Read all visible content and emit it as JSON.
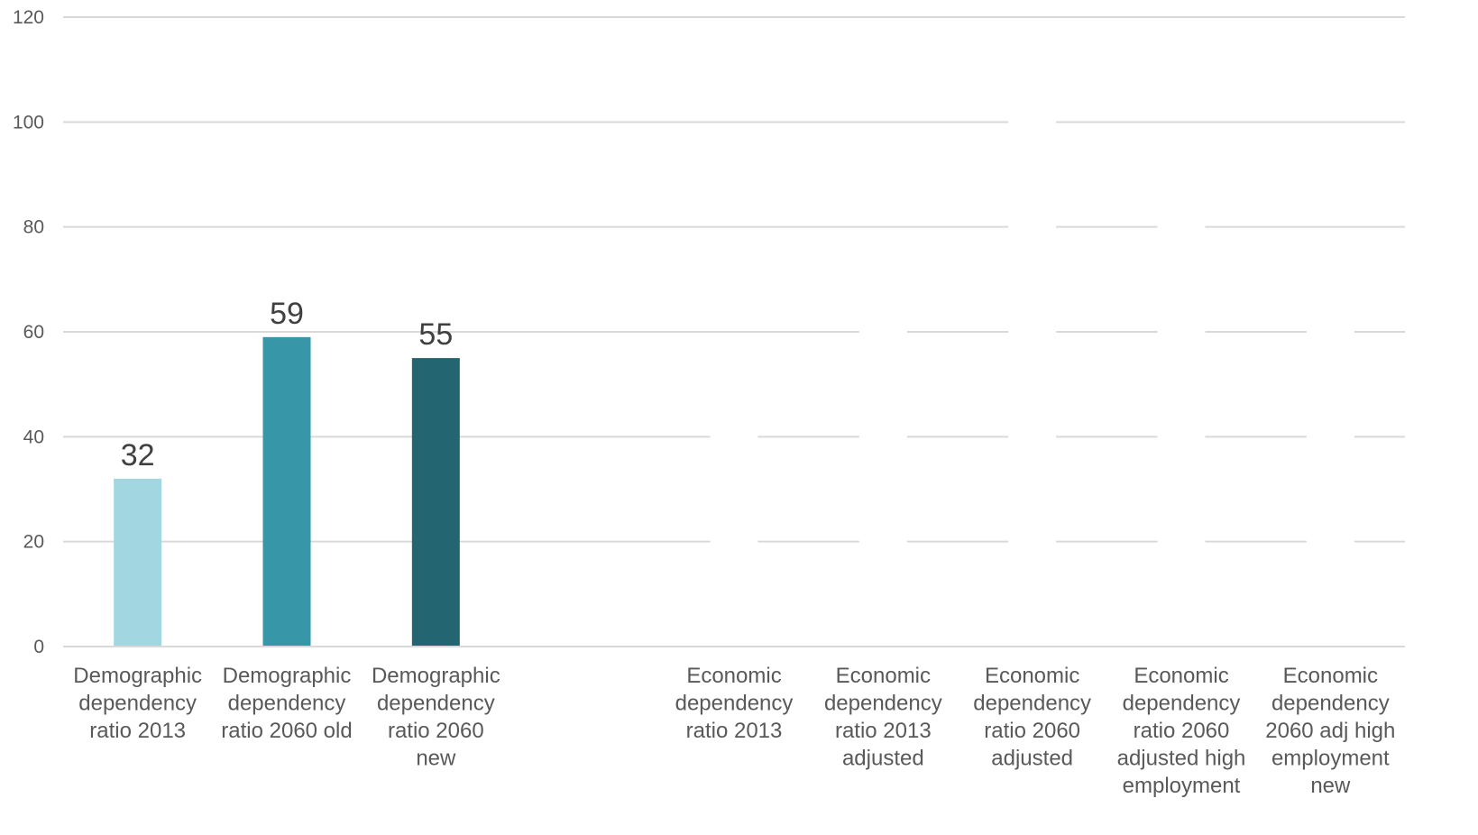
{
  "chart_data": {
    "type": "bar",
    "categories": [
      [
        "Demographic",
        "dependency",
        "ratio 2013"
      ],
      [
        "Demographic",
        "dependency",
        "ratio 2060 old"
      ],
      [
        "Demographic",
        "dependency",
        "ratio 2060",
        "new"
      ],
      [],
      [
        "Economic",
        "dependency",
        "ratio 2013"
      ],
      [
        "Economic",
        "dependency",
        "ratio 2013",
        "adjusted"
      ],
      [
        "Economic",
        "dependency",
        "ratio 2060",
        "adjusted"
      ],
      [
        "Economic",
        "dependency",
        "ratio 2060",
        "adjusted high",
        "employment"
      ],
      [
        "Economic",
        "dependency",
        "2060 adj high",
        "employment",
        "new"
      ]
    ],
    "values": [
      32,
      59,
      55,
      null,
      null,
      null,
      null,
      null,
      null
    ],
    "data_labels": [
      "32",
      "59",
      "55",
      "",
      "",
      "",
      "",
      "",
      ""
    ],
    "bar_colors": [
      "#a2d6e0",
      "#3797a8",
      "#236570",
      null,
      null,
      null,
      null,
      null,
      null
    ],
    "ylim": [
      0,
      120
    ],
    "yticks": [
      "0",
      "20",
      "40",
      "60",
      "80",
      "100",
      "120"
    ],
    "grid": true,
    "legend": "none",
    "title": "",
    "xlabel": "",
    "ylabel": ""
  }
}
